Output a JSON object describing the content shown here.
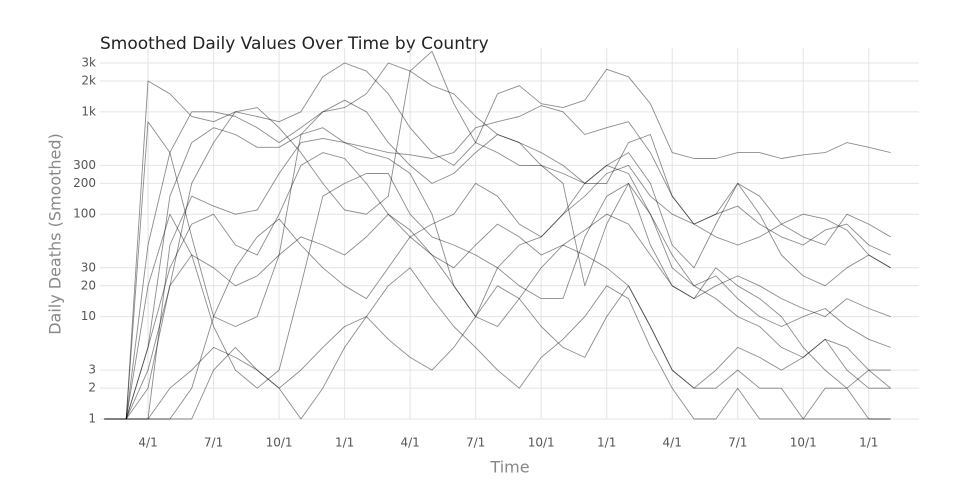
{
  "chart_data": {
    "type": "line",
    "title": "Smoothed Daily Values Over Time by Country",
    "x_label": "Time",
    "y_label": "Daily Deaths (Smoothed)",
    "log_y": true,
    "grid": true,
    "line_opacity": 0.45,
    "categories": [
      null,
      null,
      "4/1",
      null,
      null,
      "7/1",
      null,
      null,
      "10/1",
      null,
      null,
      "1/1",
      null,
      null,
      "4/1",
      null,
      null,
      "7/1",
      null,
      null,
      "10/1",
      null,
      null,
      "1/1",
      null,
      null,
      "4/1",
      null,
      null,
      "7/1",
      null,
      null,
      "10/1",
      null,
      null,
      "1/1",
      null
    ],
    "ylim": [
      1,
      4200
    ],
    "yticks": [
      1,
      2,
      3,
      10,
      20,
      30,
      100,
      200,
      300,
      {
        "value": 1000,
        "label": "1k"
      },
      {
        "value": 2000,
        "label": "2k"
      },
      {
        "value": 3000,
        "label": "3k"
      }
    ],
    "series": [
      {
        "color": "#000000",
        "values": [
          1,
          1,
          2000,
          1500,
          900,
          800,
          1000,
          900,
          800,
          1000,
          2200,
          3000,
          2500,
          1500,
          700,
          400,
          300,
          500,
          1500,
          1800,
          1200,
          1100,
          1300,
          2600,
          2200,
          1200,
          400,
          350,
          350,
          400,
          400,
          350,
          380,
          400,
          500,
          450,
          400
        ]
      },
      {
        "color": "#000000",
        "values": [
          1,
          1,
          800,
          400,
          60,
          10,
          8,
          10,
          40,
          600,
          700,
          500,
          400,
          350,
          250,
          100,
          20,
          10,
          30,
          50,
          60,
          100,
          150,
          250,
          300,
          150,
          100,
          80,
          100,
          120,
          80,
          60,
          50,
          70,
          80,
          50,
          40
        ]
      },
      {
        "color": "#000000",
        "values": [
          1,
          1,
          2,
          20,
          200,
          500,
          1000,
          1100,
          700,
          400,
          200,
          110,
          100,
          150,
          2500,
          3900,
          1200,
          500,
          400,
          300,
          300,
          200,
          20,
          80,
          200,
          50,
          20,
          15,
          30,
          20,
          15,
          10,
          5,
          3,
          2,
          3,
          2
        ]
      },
      {
        "color": "#000000",
        "values": [
          1,
          1,
          1,
          2,
          3,
          5,
          4,
          3,
          2,
          3,
          5,
          8,
          10,
          6,
          4,
          3,
          5,
          10,
          20,
          15,
          8,
          5,
          4,
          10,
          20,
          8,
          3,
          2,
          2,
          3,
          2,
          2,
          1,
          2,
          2,
          1,
          1
        ]
      },
      {
        "color": "#000000",
        "values": [
          1,
          1,
          50,
          400,
          1000,
          1000,
          900,
          700,
          500,
          700,
          1000,
          1100,
          1500,
          3000,
          2500,
          1800,
          1500,
          900,
          600,
          500,
          400,
          300,
          200,
          200,
          500,
          600,
          150,
          80,
          100,
          200,
          150,
          80,
          60,
          50,
          100,
          80,
          60
        ]
      },
      {
        "color": "#000000",
        "values": [
          1,
          1,
          5,
          30,
          80,
          100,
          50,
          40,
          100,
          300,
          400,
          350,
          200,
          100,
          60,
          80,
          100,
          200,
          150,
          80,
          60,
          100,
          200,
          300,
          250,
          100,
          30,
          20,
          25,
          15,
          10,
          8,
          10,
          12,
          8,
          6,
          5
        ]
      },
      {
        "color": "#000000",
        "values": [
          1,
          1,
          1,
          1,
          2,
          10,
          30,
          60,
          90,
          50,
          30,
          20,
          15,
          30,
          60,
          40,
          20,
          10,
          8,
          15,
          30,
          50,
          40,
          30,
          20,
          8,
          3,
          2,
          3,
          5,
          4,
          3,
          4,
          6,
          3,
          2,
          2
        ]
      },
      {
        "color": "#000000",
        "values": [
          1,
          1,
          20,
          100,
          40,
          8,
          3,
          2,
          3,
          20,
          150,
          200,
          250,
          250,
          100,
          60,
          50,
          40,
          30,
          20,
          15,
          15,
          60,
          150,
          200,
          100,
          40,
          20,
          15,
          10,
          8,
          5,
          4,
          6,
          5,
          3,
          3
        ]
      },
      {
        "color": "#000000",
        "values": [
          1,
          1,
          1,
          50,
          150,
          120,
          100,
          110,
          250,
          500,
          550,
          500,
          450,
          400,
          380,
          350,
          400,
          700,
          800,
          900,
          1150,
          1000,
          600,
          700,
          800,
          400,
          150,
          80,
          60,
          50,
          60,
          80,
          100,
          90,
          70,
          40,
          30
        ]
      },
      {
        "color": "#000000",
        "values": [
          1,
          1,
          1,
          1,
          1,
          3,
          5,
          3,
          2,
          1,
          2,
          5,
          10,
          20,
          30,
          15,
          8,
          5,
          3,
          2,
          4,
          6,
          10,
          20,
          15,
          5,
          2,
          1,
          1,
          2,
          1,
          1,
          1,
          1,
          1,
          1,
          1
        ]
      },
      {
        "color": "#000000",
        "values": [
          1,
          1,
          3,
          20,
          40,
          30,
          20,
          25,
          40,
          60,
          50,
          40,
          60,
          100,
          70,
          40,
          30,
          50,
          80,
          60,
          40,
          50,
          70,
          100,
          80,
          40,
          20,
          15,
          20,
          25,
          20,
          15,
          12,
          10,
          15,
          12,
          10
        ]
      },
      {
        "color": "#000000",
        "values": [
          1,
          1,
          5,
          150,
          500,
          700,
          600,
          450,
          450,
          600,
          1000,
          1300,
          1000,
          500,
          300,
          200,
          250,
          400,
          600,
          500,
          300,
          250,
          200,
          300,
          400,
          200,
          50,
          30,
          80,
          200,
          100,
          40,
          25,
          20,
          30,
          40,
          30
        ]
      }
    ]
  }
}
